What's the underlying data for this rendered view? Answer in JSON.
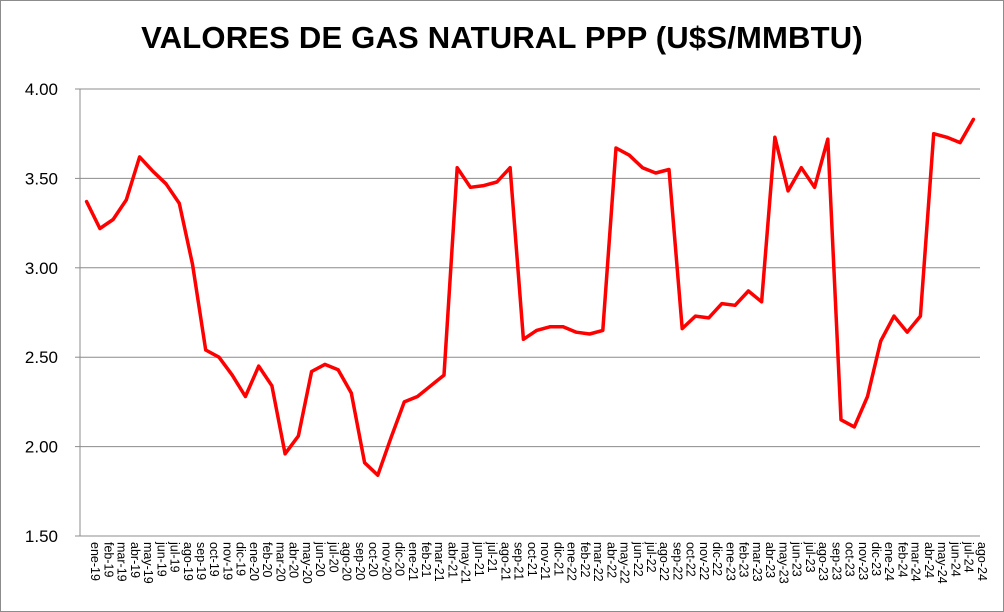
{
  "chart_data": {
    "type": "line",
    "title": "VALORES DE GAS NATURAL PPP (U$S/MMBTU)",
    "xlabel": "",
    "ylabel": "",
    "ylim": [
      1.5,
      4.0
    ],
    "yticks": [
      1.5,
      2.0,
      2.5,
      3.0,
      3.5,
      4.0
    ],
    "ytick_labels": [
      "1.50",
      "2.00",
      "2.50",
      "3.00",
      "3.50",
      "4.00"
    ],
    "grid": true,
    "legend": "none",
    "line_color": "#ff0000",
    "categories": [
      "ene-19",
      "feb-19",
      "mar-19",
      "abr-19",
      "may-19",
      "jun-19",
      "jul-19",
      "ago-19",
      "sep-19",
      "oct-19",
      "nov-19",
      "dic-19",
      "ene-20",
      "feb-20",
      "mar-20",
      "abr-20",
      "may-20",
      "jun-20",
      "jul-20",
      "ago-20",
      "sep-20",
      "oct-20",
      "nov-20",
      "dic-20",
      "ene-21",
      "feb-21",
      "mar-21",
      "abr-21",
      "may-21",
      "jun-21",
      "jul-21",
      "ago-21",
      "sep-21",
      "oct-21",
      "nov-21",
      "dic-21",
      "ene-22",
      "feb-22",
      "mar-22",
      "abr-22",
      "may-22",
      "jun-22",
      "jul-22",
      "ago-22",
      "sep-22",
      "oct-22",
      "nov-22",
      "dic-22",
      "ene-23",
      "feb-23",
      "mar-23",
      "abr-23",
      "may-23",
      "jun-23",
      "jul-23",
      "ago-23",
      "sep-23",
      "oct-23",
      "nov-23",
      "dic-23",
      "ene-24",
      "feb-24",
      "mar-24",
      "abr-24",
      "may-24",
      "jun-24",
      "jul-24",
      "ago-24"
    ],
    "series": [
      {
        "values": [
          3.37,
          3.22,
          3.27,
          3.38,
          3.62,
          3.54,
          3.47,
          3.36,
          3.02,
          2.54,
          2.5,
          2.4,
          2.28,
          2.45,
          2.34,
          1.96,
          2.06,
          2.42,
          2.46,
          2.43,
          2.3,
          1.91,
          1.84,
          2.05,
          2.25,
          2.28,
          2.34,
          2.4,
          3.56,
          3.45,
          3.46,
          3.48,
          3.56,
          2.6,
          2.65,
          2.67,
          2.67,
          2.64,
          2.63,
          2.65,
          3.67,
          3.63,
          3.56,
          3.53,
          3.55,
          2.66,
          2.73,
          2.72,
          2.8,
          2.79,
          2.87,
          2.81,
          3.73,
          3.43,
          3.56,
          3.45,
          3.72,
          2.15,
          2.11,
          2.28,
          2.59,
          2.73,
          2.64,
          2.73,
          3.75,
          3.73,
          3.7,
          3.83
        ]
      }
    ]
  }
}
